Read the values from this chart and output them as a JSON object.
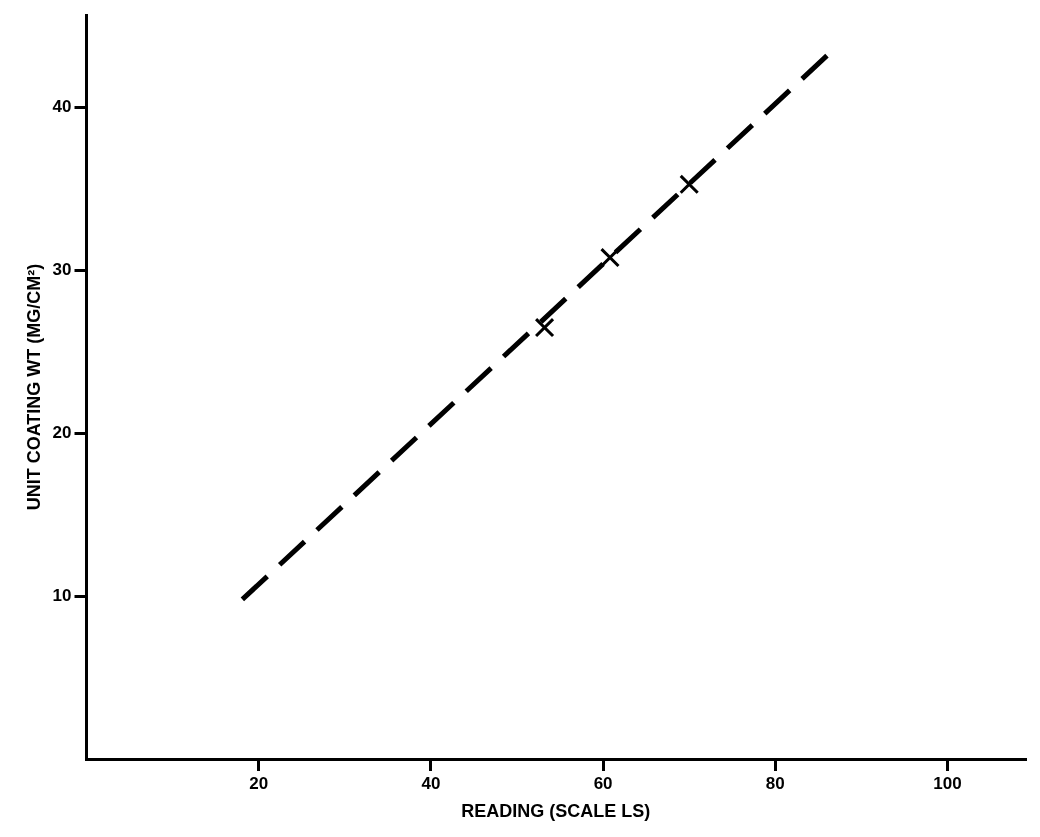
{
  "chart_data": {
    "type": "scatter",
    "xlabel": "READING (SCALE LS)",
    "ylabel": "UNIT COATING WT (MG/CM²)",
    "xlim": [
      0,
      109
    ],
    "ylim": [
      0,
      45.7
    ],
    "xticks": [
      20,
      40,
      60,
      80,
      100
    ],
    "yticks": [
      10,
      20,
      30,
      40
    ],
    "grid": false,
    "legend": false,
    "series": [
      {
        "type": "line",
        "color": "#000000",
        "x": [
          18.1,
          86
        ],
        "values": [
          9.8,
          43.2
        ],
        "marker": "none",
        "line_style": "dashed"
      },
      {
        "type": "scatter",
        "color": "#000000",
        "x": [
          53.2,
          60.8,
          70
        ],
        "values": [
          26.5,
          30.8,
          35.3
        ],
        "marker": "cross"
      }
    ]
  }
}
